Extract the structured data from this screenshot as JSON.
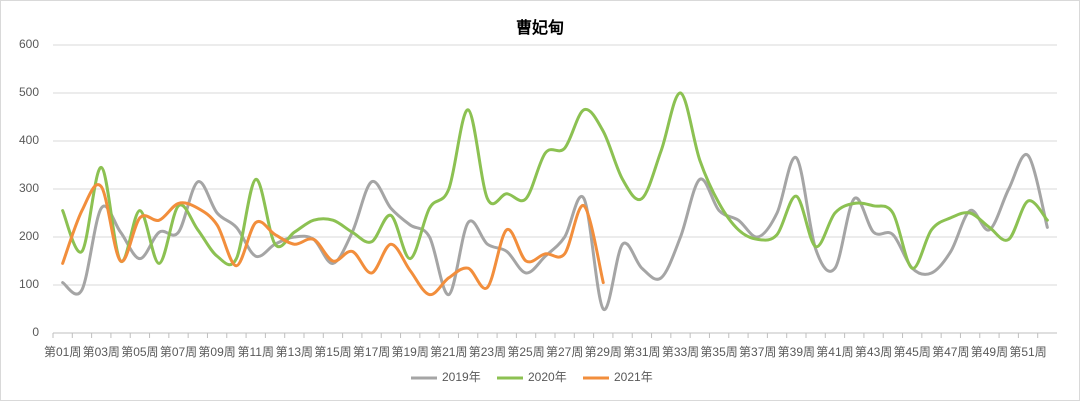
{
  "chart_data": {
    "type": "line",
    "title": "曹妃甸",
    "categories": [
      "第01周",
      null,
      "第03周",
      null,
      "第05周",
      null,
      "第07周",
      null,
      "第09周",
      null,
      "第11周",
      null,
      "第13周",
      null,
      "第15周",
      null,
      "第17周",
      null,
      "第19周",
      null,
      "第21周",
      null,
      "第23周",
      null,
      "第25周",
      null,
      "第27周",
      null,
      "第29周",
      null,
      "第31周",
      null,
      "第33周",
      null,
      "第35周",
      null,
      "第37周",
      null,
      "第39周",
      null,
      "第41周",
      null,
      "第43周",
      null,
      "第45周",
      null,
      "第47周",
      null,
      "第49周",
      null,
      "第51周",
      null
    ],
    "series": [
      {
        "name": "2019年",
        "color": "#a5a5a5",
        "values": [
          105,
          90,
          260,
          210,
          155,
          210,
          210,
          315,
          250,
          220,
          160,
          185,
          200,
          195,
          145,
          210,
          315,
          260,
          225,
          200,
          80,
          230,
          185,
          170,
          125,
          160,
          200,
          280,
          50,
          185,
          135,
          115,
          200,
          320,
          255,
          235,
          200,
          250,
          365,
          175,
          135,
          280,
          210,
          205,
          135,
          125,
          170,
          255,
          215,
          300,
          370,
          220
        ]
      },
      {
        "name": "2020年",
        "color": "#8cc152",
        "values": [
          255,
          170,
          345,
          150,
          255,
          145,
          265,
          215,
          160,
          155,
          320,
          185,
          210,
          235,
          235,
          210,
          190,
          245,
          155,
          260,
          300,
          465,
          280,
          290,
          280,
          375,
          385,
          465,
          420,
          320,
          280,
          380,
          500,
          360,
          270,
          215,
          195,
          205,
          285,
          180,
          250,
          270,
          265,
          250,
          135,
          215,
          240,
          250,
          220,
          195,
          275,
          235
        ]
      },
      {
        "name": "2021年",
        "color": "#f28e3c",
        "values": [
          145,
          255,
          305,
          150,
          240,
          235,
          270,
          260,
          225,
          140,
          230,
          205,
          185,
          195,
          150,
          170,
          125,
          185,
          130,
          80,
          115,
          135,
          95,
          215,
          150,
          165,
          165,
          265,
          105,
          null,
          null,
          null,
          null,
          null,
          null,
          null,
          null,
          null,
          null,
          null,
          null,
          null,
          null,
          null,
          null,
          null,
          null,
          null,
          null,
          null,
          null,
          null
        ]
      }
    ],
    "ylim": [
      0,
      600
    ],
    "yticks": [
      0,
      100,
      200,
      300,
      400,
      500,
      600
    ],
    "grid": true,
    "legend": "bottom"
  }
}
